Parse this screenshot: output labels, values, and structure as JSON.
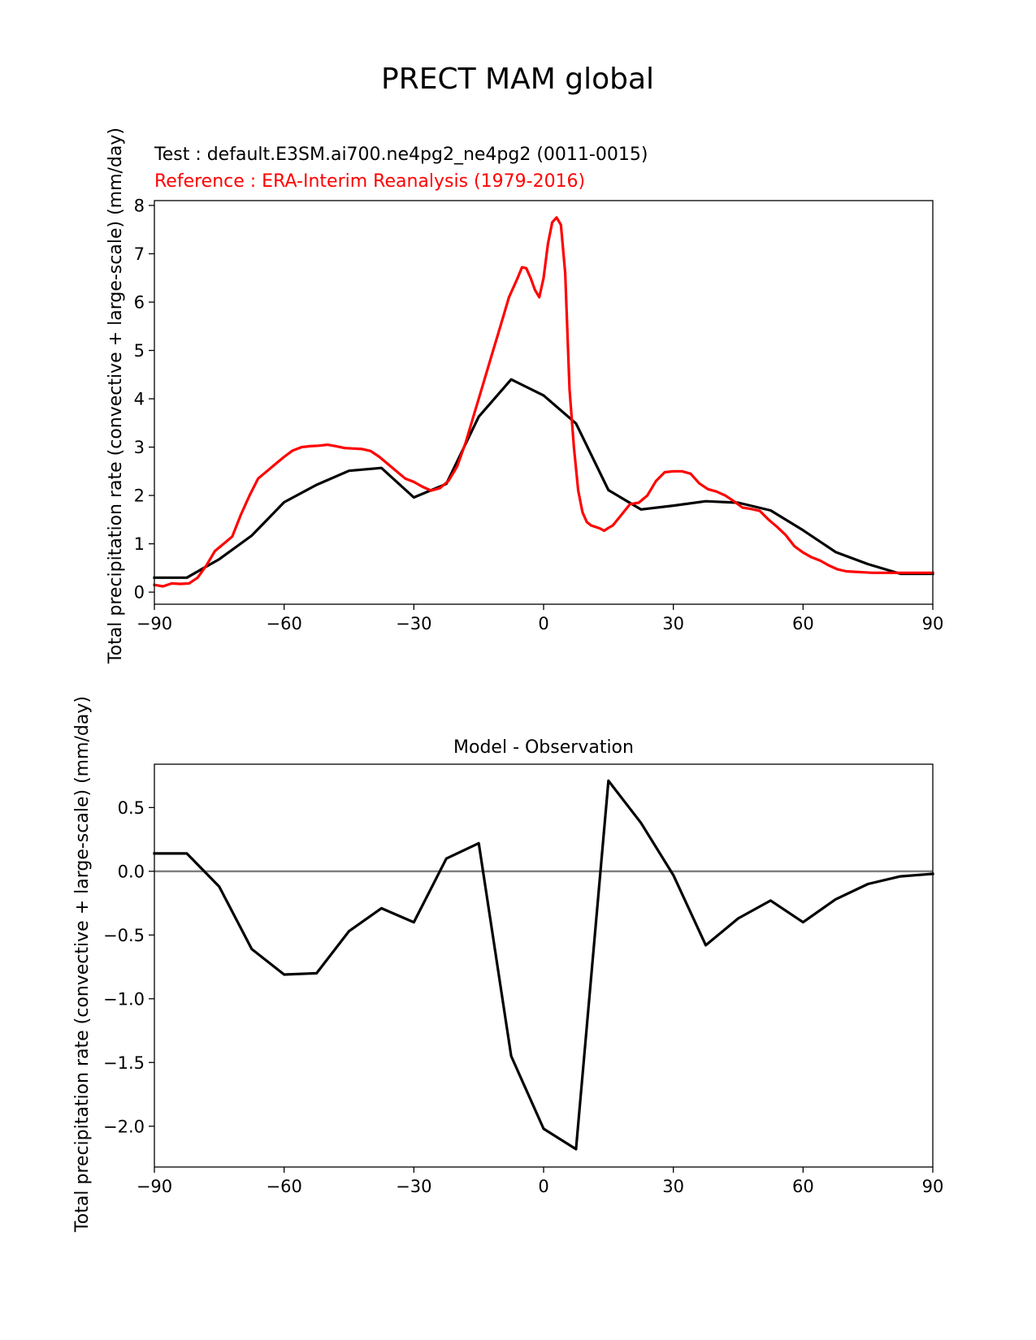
{
  "suptitle": "PRECT MAM global",
  "chart_data": [
    {
      "type": "line",
      "test_label": "Test : default.E3SM.ai700.ne4pg2_ne4pg2 (0011-0015)",
      "reference_label": "Reference : ERA-Interim Reanalysis (1979-2016)",
      "ylabel": "Total precipitation rate (convective + large-scale) (mm/day)",
      "xlim": [
        -90,
        90
      ],
      "ylim": [
        -0.25,
        8.1
      ],
      "xticks": [
        -90,
        -60,
        -30,
        0,
        30,
        60,
        90
      ],
      "xtick_labels": [
        "−90",
        "−60",
        "−30",
        "0",
        "30",
        "60",
        "90"
      ],
      "yticks": [
        0,
        1,
        2,
        3,
        4,
        5,
        6,
        7,
        8
      ],
      "ytick_labels": [
        "0",
        "1",
        "2",
        "3",
        "4",
        "5",
        "6",
        "7",
        "8"
      ],
      "series": [
        {
          "name": "Test",
          "color": "#000000",
          "x": [
            -90,
            -82.5,
            -75,
            -67.5,
            -60,
            -52.5,
            -45,
            -37.5,
            -30,
            -22.5,
            -15,
            -7.5,
            0,
            7.5,
            15,
            22.5,
            30,
            37.5,
            45,
            52.5,
            60,
            67.5,
            75,
            82.5,
            90
          ],
          "y": [
            0.3,
            0.3,
            0.68,
            1.17,
            1.86,
            2.22,
            2.51,
            2.57,
            1.96,
            2.24,
            3.63,
            4.4,
            4.07,
            3.49,
            2.11,
            1.71,
            1.79,
            1.88,
            1.85,
            1.69,
            1.28,
            0.83,
            0.58,
            0.38,
            0.38
          ]
        },
        {
          "name": "Reference",
          "color": "#ff0000",
          "x": [
            -90,
            -88,
            -86,
            -84,
            -82,
            -80,
            -78,
            -76,
            -74,
            -72,
            -70,
            -68,
            -66,
            -64,
            -62,
            -60,
            -58,
            -56,
            -54,
            -52,
            -50,
            -48,
            -46,
            -44,
            -42,
            -40,
            -38,
            -36,
            -34,
            -32,
            -30,
            -28,
            -26,
            -24,
            -22,
            -20,
            -18,
            -16,
            -14,
            -12,
            -10,
            -8,
            -6,
            -5,
            -4,
            -3,
            -2,
            -1,
            0,
            1,
            2,
            3,
            4,
            5,
            6,
            7,
            8,
            9,
            10,
            11,
            12,
            13,
            14,
            15,
            16,
            18,
            20,
            22,
            24,
            26,
            28,
            30,
            32,
            34,
            36,
            38,
            40,
            42,
            44,
            46,
            48,
            50,
            52,
            54,
            56,
            58,
            60,
            62,
            64,
            66,
            68,
            70,
            72,
            74,
            76,
            78,
            80,
            82,
            84,
            86,
            88,
            90
          ],
          "y": [
            0.15,
            0.12,
            0.18,
            0.17,
            0.18,
            0.3,
            0.55,
            0.85,
            1.0,
            1.15,
            1.6,
            2.0,
            2.35,
            2.5,
            2.65,
            2.8,
            2.93,
            3.0,
            3.02,
            3.03,
            3.05,
            3.02,
            2.98,
            2.97,
            2.96,
            2.92,
            2.8,
            2.65,
            2.5,
            2.35,
            2.28,
            2.18,
            2.1,
            2.15,
            2.3,
            2.6,
            3.1,
            3.7,
            4.3,
            4.9,
            5.5,
            6.1,
            6.5,
            6.72,
            6.7,
            6.5,
            6.25,
            6.1,
            6.5,
            7.2,
            7.65,
            7.75,
            7.6,
            6.6,
            4.2,
            3.0,
            2.1,
            1.65,
            1.45,
            1.38,
            1.35,
            1.32,
            1.27,
            1.33,
            1.38,
            1.6,
            1.82,
            1.85,
            2.0,
            2.3,
            2.48,
            2.5,
            2.5,
            2.45,
            2.25,
            2.13,
            2.08,
            2.0,
            1.88,
            1.75,
            1.72,
            1.68,
            1.5,
            1.35,
            1.18,
            0.95,
            0.82,
            0.72,
            0.65,
            0.55,
            0.47,
            0.43,
            0.42,
            0.41,
            0.4,
            0.4,
            0.4,
            0.4,
            0.4,
            0.4,
            0.4,
            0.4
          ]
        }
      ]
    },
    {
      "type": "line",
      "title": "Model - Observation",
      "ylabel": "Total precipitation rate (convective + large-scale) (mm/day)",
      "xlim": [
        -90,
        90
      ],
      "ylim": [
        -2.32,
        0.84
      ],
      "xticks": [
        -90,
        -60,
        -30,
        0,
        30,
        60,
        90
      ],
      "xtick_labels": [
        "−90",
        "−60",
        "−30",
        "0",
        "30",
        "60",
        "90"
      ],
      "yticks": [
        0.5,
        0.0,
        -0.5,
        -1.0,
        -1.5,
        -2.0
      ],
      "ytick_labels": [
        "0.5",
        "0.0",
        "−0.5",
        "−1.0",
        "−1.5",
        "−2.0"
      ],
      "zero_line_color": "#808080",
      "series": [
        {
          "name": "Model - Observation",
          "color": "#000000",
          "x": [
            -90,
            -82.5,
            -75,
            -67.5,
            -60,
            -52.5,
            -45,
            -37.5,
            -30,
            -22.5,
            -15,
            -7.5,
            0,
            7.5,
            15,
            22.5,
            30,
            37.5,
            45,
            52.5,
            60,
            67.5,
            75,
            82.5,
            90
          ],
          "y": [
            0.14,
            0.14,
            -0.12,
            -0.61,
            -0.81,
            -0.8,
            -0.47,
            -0.29,
            -0.4,
            0.1,
            0.22,
            -1.45,
            -2.02,
            -2.18,
            0.71,
            0.38,
            -0.03,
            -0.58,
            -0.37,
            -0.23,
            -0.4,
            -0.22,
            -0.1,
            -0.04,
            -0.02
          ]
        }
      ]
    }
  ]
}
